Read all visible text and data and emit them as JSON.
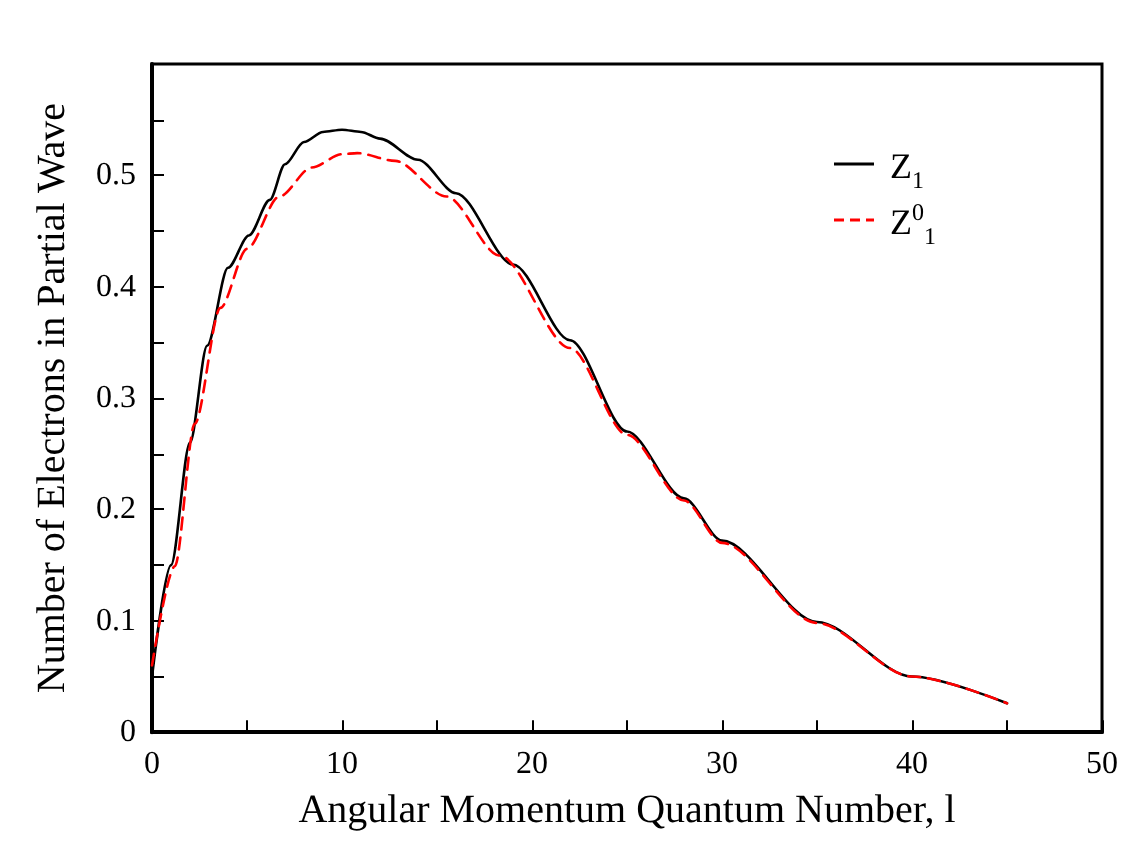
{
  "chart_data": {
    "type": "line",
    "xlabel": "Angular Momentum Quantum Number, l",
    "ylabel": "Number of Electrons in Partial Wave",
    "xlim": [
      0,
      50
    ],
    "xticks": [
      0,
      {
        "value": 5,
        "label": null
      },
      10,
      {
        "value": 15,
        "label": null
      },
      20,
      {
        "value": 25,
        "label": null
      },
      30,
      {
        "value": 35,
        "label": null
      },
      40,
      {
        "value": 45,
        "label": null
      },
      50
    ],
    "ylim": [
      0,
      0.6
    ],
    "yticks": [
      0,
      {
        "value": 0.05,
        "label": null
      },
      0.1,
      {
        "value": 0.15,
        "label": null
      },
      0.2,
      {
        "value": 0.25,
        "label": null
      },
      0.3,
      {
        "value": 0.35,
        "label": null
      },
      0.4,
      {
        "value": 0.45,
        "label": null
      },
      0.5,
      {
        "value": 0.55,
        "label": null
      }
    ],
    "grid": false,
    "legend": "top right",
    "marker": "none",
    "series": [
      {
        "name": "Z$_{1}$",
        "color": "#000000",
        "line_style": "solid",
        "x": [
          0,
          1,
          2,
          2.9,
          4,
          5.1,
          6.2,
          7,
          8,
          9,
          10,
          11,
          12,
          14,
          16,
          19,
          22,
          25,
          28,
          30,
          35,
          40,
          45
        ],
        "values": [
          0.05,
          0.15,
          0.26,
          0.347,
          0.417,
          0.446,
          0.478,
          0.51,
          0.53,
          0.539,
          0.541,
          0.539,
          0.533,
          0.514,
          0.484,
          0.42,
          0.352,
          0.27,
          0.21,
          0.172,
          0.099,
          0.05,
          0.026
        ]
      },
      {
        "name": "Z$^{0}$$_{1}$",
        "color": "#ff0000",
        "line_style": "dashed",
        "x": [
          0,
          1.2,
          2.25,
          3.6,
          5,
          6.7,
          8.4,
          10,
          10.8,
          12.8,
          15.5,
          18.3,
          22,
          25,
          28,
          30,
          35,
          40,
          45
        ],
        "values": [
          0.06,
          0.149,
          0.277,
          0.381,
          0.434,
          0.481,
          0.507,
          0.519,
          0.52,
          0.513,
          0.481,
          0.428,
          0.345,
          0.267,
          0.208,
          0.17,
          0.098,
          0.05,
          0.026
        ]
      }
    ]
  }
}
